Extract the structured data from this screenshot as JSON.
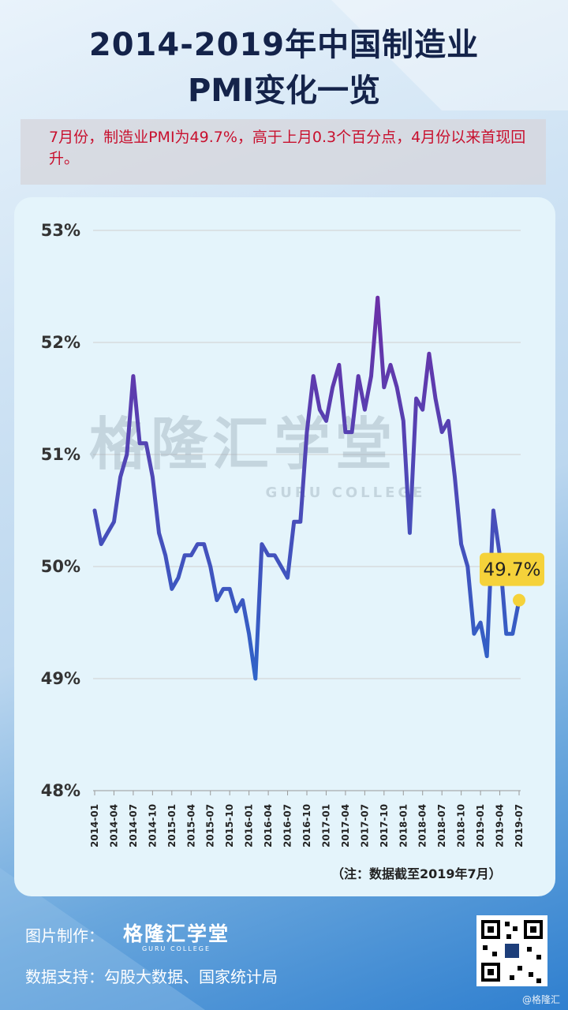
{
  "title_line1": "2014-2019年中国制造业",
  "title_line2": "PMI变化一览",
  "note": "7月份，制造业PMI为49.7%，高于上月0.3个百分点，4月份以来首现回升。",
  "watermark": {
    "cn": "格隆汇学堂",
    "en": "GURU COLLEGE"
  },
  "footnote": "（注：数据截至2019年7月）",
  "credit_label": "图片制作：",
  "brand": {
    "cn": "格隆汇学堂",
    "en": "GURU COLLEGE"
  },
  "data_support": "数据支持：勾股大数据、国家统计局",
  "corner_mark": "@格隆汇",
  "colors": {
    "line_top": "#6b2fa6",
    "line_bottom": "#2f63c8",
    "callout": "#f5d23a"
  },
  "chart_data": {
    "type": "line",
    "ylim": [
      48,
      53
    ],
    "yticks": [
      "48%",
      "49%",
      "50%",
      "51%",
      "52%",
      "53%"
    ],
    "x_labels": [
      "2014-01",
      "2014-04",
      "2014-07",
      "2014-10",
      "2015-01",
      "2015-04",
      "2015-07",
      "2015-10",
      "2016-01",
      "2016-04",
      "2016-07",
      "2016-10",
      "2017-01",
      "2017-04",
      "2017-07",
      "2017-10",
      "2018-01",
      "2018-04",
      "2018-07",
      "2018-10",
      "2019-01",
      "2019-04",
      "2019-07"
    ],
    "values": [
      50.5,
      50.2,
      50.3,
      50.4,
      50.8,
      51.0,
      51.7,
      51.1,
      51.1,
      50.8,
      50.3,
      50.1,
      49.8,
      49.9,
      50.1,
      50.1,
      50.2,
      50.2,
      50.0,
      49.7,
      49.8,
      49.8,
      49.6,
      49.7,
      49.4,
      49.0,
      50.2,
      50.1,
      50.1,
      50.0,
      49.9,
      50.4,
      50.4,
      51.2,
      51.7,
      51.4,
      51.3,
      51.6,
      51.8,
      51.2,
      51.2,
      51.7,
      51.4,
      51.7,
      52.4,
      51.6,
      51.8,
      51.6,
      51.3,
      50.3,
      51.5,
      51.4,
      51.9,
      51.5,
      51.2,
      51.3,
      50.8,
      50.2,
      50.0,
      49.4,
      49.5,
      49.2,
      50.5,
      50.1,
      49.4,
      49.4,
      49.7
    ],
    "last_label": "49.7%"
  }
}
